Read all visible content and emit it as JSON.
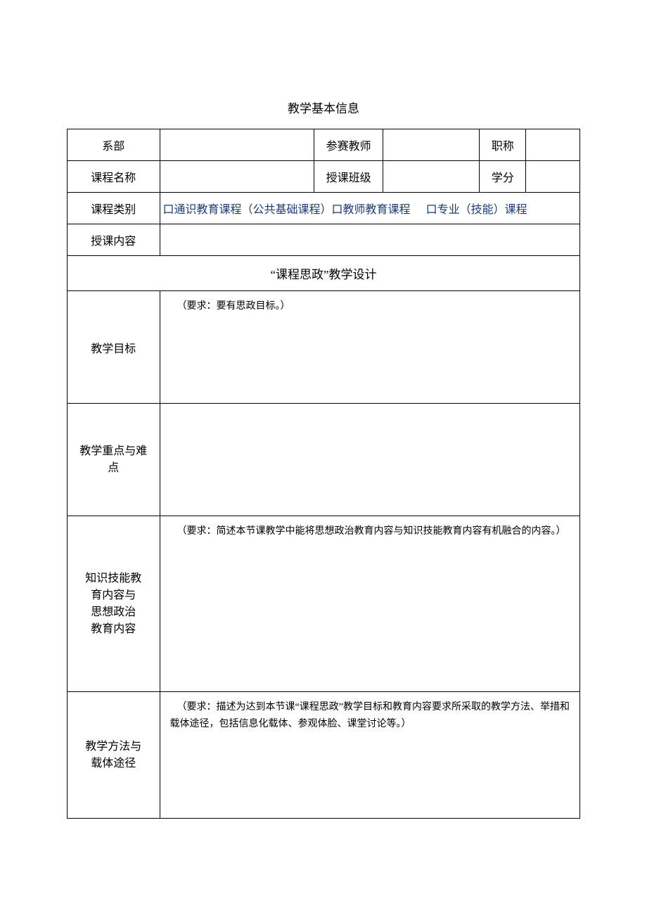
{
  "title": "教学基本信息",
  "row1": {
    "label1": "系部",
    "val1": "",
    "label2": "参赛教师",
    "val2": "",
    "label3": "职称",
    "val3": ""
  },
  "row2": {
    "label1": "课程名称",
    "val1": "",
    "label2": "授课班级",
    "val2": "",
    "label3": "学分",
    "val3": ""
  },
  "row3": {
    "label": "课程类别",
    "content": "口通识教育课程（公共基础课程）口教师教育课程",
    "content2": "口专业（技能）课程"
  },
  "row4": {
    "label": "授课内容",
    "val": ""
  },
  "section_header": "“课程思政”教学设计",
  "goals": {
    "label": "教学目标",
    "note": "（要求：要有思政目标。）"
  },
  "keypoints": {
    "label_line1": "教学重点与难",
    "label_line2": "点",
    "note": ""
  },
  "knowledge": {
    "label_line1": "知识技能教",
    "label_line2": "育内容与",
    "label_line3": "思想政治",
    "label_line4": "教育内容",
    "note": "（要求：简述本节课教学中能将思想政治教育内容与知识技能教育内容有机融合的内容。）"
  },
  "methods": {
    "label_line1": "教学方法与",
    "label_line2": "载体途径",
    "note": "（要求：描述为达到本节课“课程思政”教学目标和教育内容要求所采取的教学方法、举措和载体途径，包括信息化载体、参观体脸、课堂讨论等。）"
  },
  "colors": {
    "text": "#000000",
    "link": "#1a3a7a",
    "border": "#000000",
    "background": "#ffffff"
  }
}
